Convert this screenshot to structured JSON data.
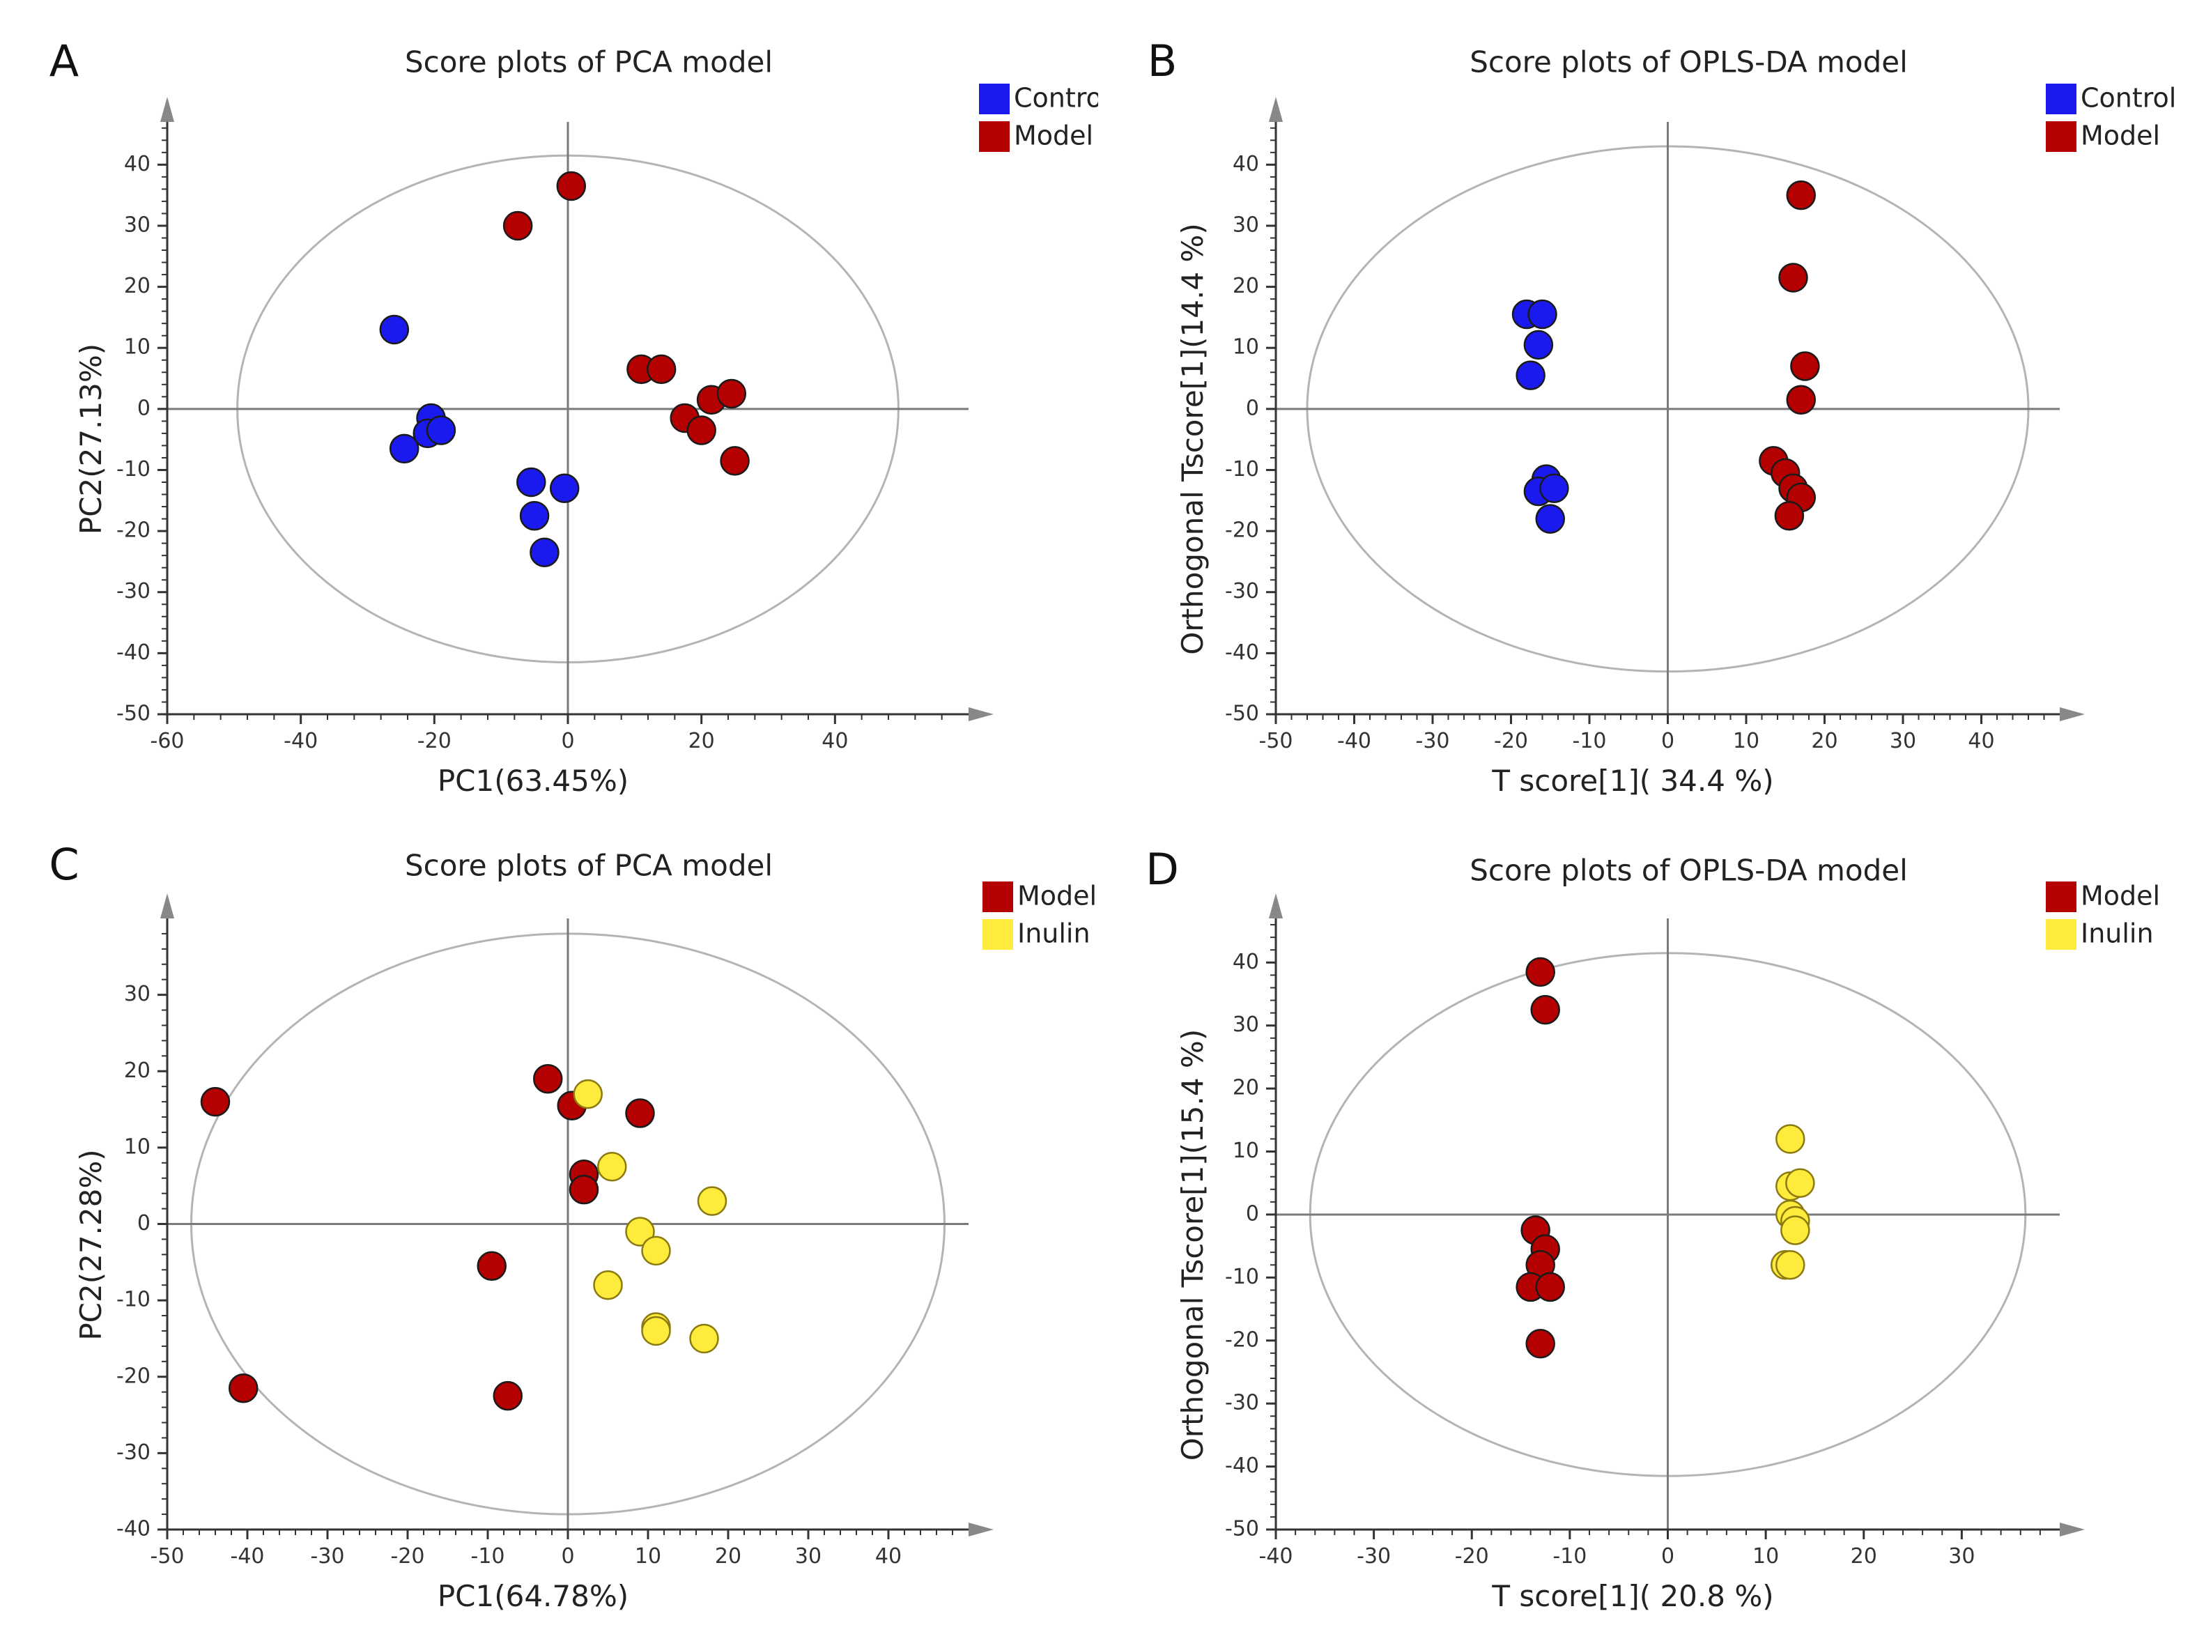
{
  "colors": {
    "Control": "#1a1aee",
    "Model": "#b40000",
    "Inulin": "#ffeb3b",
    "axis": "#333333",
    "ellipse": "#b4b4b4"
  },
  "chart_data": [
    {
      "type": "scatter",
      "panel_label": "A",
      "title": "Score plots of PCA model",
      "xlabel": "PC1(63.45%)",
      "ylabel": "PC2(27.13%)",
      "xlim": [
        -60,
        60
      ],
      "ylim": [
        -50,
        47
      ],
      "xticks": [
        -60,
        -40,
        -20,
        0,
        20,
        40
      ],
      "yticks": [
        -50,
        -40,
        -30,
        -20,
        -10,
        0,
        10,
        20,
        30,
        40
      ],
      "ellipse": {
        "cx": 0,
        "cy": 0,
        "rx": 49.5,
        "ry": 41.5
      },
      "legend": [
        "Control",
        "Model"
      ],
      "series": [
        {
          "name": "Control",
          "points": [
            [
              -26,
              13
            ],
            [
              -20.5,
              -1.5
            ],
            [
              -21,
              -4
            ],
            [
              -19,
              -3.5
            ],
            [
              -24.5,
              -6.5
            ],
            [
              -5.5,
              -12
            ],
            [
              -5,
              -17.5
            ],
            [
              -3.5,
              -23.5
            ],
            [
              -0.5,
              -13
            ]
          ]
        },
        {
          "name": "Model",
          "points": [
            [
              0.5,
              36.5
            ],
            [
              -7.5,
              30
            ],
            [
              11,
              6.5
            ],
            [
              14,
              6.5
            ],
            [
              17.5,
              -1.5
            ],
            [
              20,
              -3.5
            ],
            [
              21.5,
              1.5
            ],
            [
              24.5,
              2.5
            ],
            [
              25,
              -8.5
            ]
          ]
        }
      ]
    },
    {
      "type": "scatter",
      "panel_label": "B",
      "title": "Score plots of OPLS-DA model",
      "xlabel": "T score[1]( 34.4 %)",
      "ylabel": "Orthogonal Tscore[1](14.4 %)",
      "xlim": [
        -50,
        50
      ],
      "ylim": [
        -50,
        47
      ],
      "xticks": [
        -50,
        -40,
        -30,
        -20,
        -10,
        0,
        10,
        20,
        30,
        40
      ],
      "yticks": [
        -50,
        -40,
        -30,
        -20,
        -10,
        0,
        10,
        20,
        30,
        40
      ],
      "ellipse": {
        "cx": 0,
        "cy": 0,
        "rx": 46,
        "ry": 43
      },
      "legend": [
        "Control",
        "Model"
      ],
      "series": [
        {
          "name": "Control",
          "points": [
            [
              -18,
              15.5
            ],
            [
              -16,
              15.5
            ],
            [
              -16.5,
              10.5
            ],
            [
              -17.5,
              5.5
            ],
            [
              -15.5,
              -11.5
            ],
            [
              -16.5,
              -13.5
            ],
            [
              -14.5,
              -13
            ],
            [
              -15,
              -18
            ]
          ]
        },
        {
          "name": "Model",
          "points": [
            [
              17,
              35
            ],
            [
              16,
              21.5
            ],
            [
              17.5,
              7
            ],
            [
              17,
              1.5
            ],
            [
              13.5,
              -8.5
            ],
            [
              15,
              -10.5
            ],
            [
              16,
              -13
            ],
            [
              17,
              -14.5
            ],
            [
              15.5,
              -17.5
            ]
          ]
        }
      ]
    },
    {
      "type": "scatter",
      "panel_label": "C",
      "title": "Score plots of PCA model",
      "xlabel": "PC1(64.78%)",
      "ylabel": "PC2(27.28%)",
      "xlim": [
        -50,
        50
      ],
      "ylim": [
        -40,
        40
      ],
      "xticks": [
        -50,
        -40,
        -30,
        -20,
        -10,
        0,
        10,
        20,
        30,
        40
      ],
      "yticks": [
        -40,
        -30,
        -20,
        -10,
        0,
        10,
        20,
        30
      ],
      "ellipse": {
        "cx": 0,
        "cy": 0,
        "rx": 47,
        "ry": 38
      },
      "legend": [
        "Model",
        "Inulin"
      ],
      "series": [
        {
          "name": "Model",
          "points": [
            [
              -44,
              16
            ],
            [
              -2.5,
              19
            ],
            [
              0.5,
              15.5
            ],
            [
              9,
              14.5
            ],
            [
              2,
              6.5
            ],
            [
              2,
              4.5
            ],
            [
              -9.5,
              -5.5
            ],
            [
              -40.5,
              -21.5
            ],
            [
              -7.5,
              -22.5
            ]
          ]
        },
        {
          "name": "Inulin",
          "points": [
            [
              2.5,
              17
            ],
            [
              5.5,
              7.5
            ],
            [
              18,
              3
            ],
            [
              9,
              -1
            ],
            [
              11,
              -3.5
            ],
            [
              5,
              -8
            ],
            [
              11,
              -13.5
            ],
            [
              11,
              -14
            ],
            [
              17,
              -15
            ]
          ]
        }
      ]
    },
    {
      "type": "scatter",
      "panel_label": "D",
      "title": "Score plots of OPLS-DA model",
      "xlabel": "T score[1]( 20.8 %)",
      "ylabel": "Orthogonal Tscore[1](15.4 %)",
      "xlim": [
        -40,
        40
      ],
      "ylim": [
        -50,
        47
      ],
      "xticks": [
        -40,
        -30,
        -20,
        -10,
        0,
        10,
        20,
        30
      ],
      "yticks": [
        -50,
        -40,
        -30,
        -20,
        -10,
        0,
        10,
        20,
        30,
        40
      ],
      "ellipse": {
        "cx": 0,
        "cy": 0,
        "rx": 36.5,
        "ry": 41.5
      },
      "legend": [
        "Model",
        "Inulin"
      ],
      "series": [
        {
          "name": "Model",
          "points": [
            [
              -13,
              38.5
            ],
            [
              -12.5,
              32.5
            ],
            [
              -13.5,
              -2.5
            ],
            [
              -12.5,
              -5.5
            ],
            [
              -13,
              -8
            ],
            [
              -14,
              -11.5
            ],
            [
              -12,
              -11.5
            ],
            [
              -13,
              -20.5
            ]
          ]
        },
        {
          "name": "Inulin",
          "points": [
            [
              12.5,
              12
            ],
            [
              12.5,
              4.5
            ],
            [
              13.5,
              5
            ],
            [
              12.5,
              0
            ],
            [
              13,
              -1
            ],
            [
              13,
              -2.5
            ],
            [
              12,
              -8
            ],
            [
              12.5,
              -8
            ]
          ]
        }
      ]
    }
  ]
}
